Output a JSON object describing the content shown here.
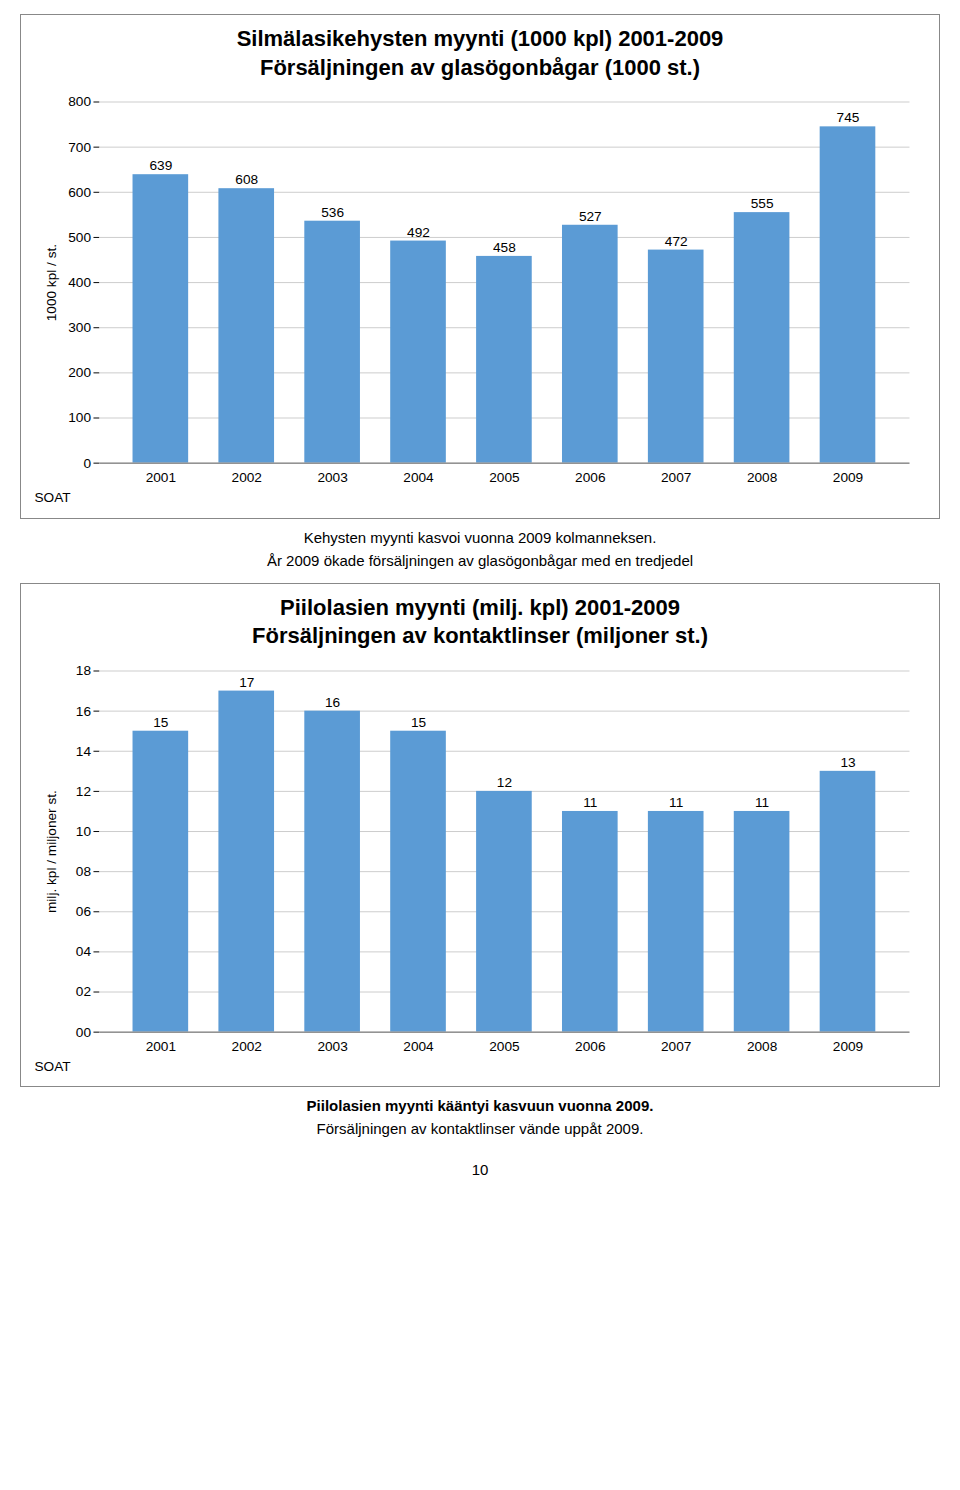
{
  "chart_data": [
    {
      "type": "bar",
      "title": "Silmälasikehysten myynti (1000 kpl) 2001-2009",
      "subtitle": "Försäljningen av glasögonbågar (1000 st.)",
      "categories": [
        "2001",
        "2002",
        "2003",
        "2004",
        "2005",
        "2006",
        "2007",
        "2008",
        "2009"
      ],
      "values": [
        639,
        608,
        536,
        492,
        458,
        527,
        472,
        555,
        745
      ],
      "color": "#5b9bd5",
      "ylabel": "1000 kpl / st.",
      "xlabel": "SOAT",
      "ylim": [
        0,
        800
      ],
      "yticks": [
        0,
        100,
        200,
        300,
        400,
        500,
        600,
        700,
        800
      ],
      "grid": true,
      "data_labels": true,
      "annotations": [
        "Kehysten myynti kasvoi vuonna 2009 kolmanneksen.",
        "År 2009 ökade försäljningen av glasögonbågar med en tredjedel"
      ]
    },
    {
      "type": "bar",
      "title": "Piilolasien myynti (milj. kpl) 2001-2009",
      "subtitle": "Försäljningen av kontaktlinser (miljoner st.)",
      "categories": [
        "2001",
        "2002",
        "2003",
        "2004",
        "2005",
        "2006",
        "2007",
        "2008",
        "2009"
      ],
      "values": [
        15,
        17,
        16,
        15,
        12,
        11,
        11,
        11,
        13
      ],
      "color": "#5b9bd5",
      "ylabel": "milj. kpl / miljoner st.",
      "xlabel": "SOAT",
      "ylim": [
        0,
        18
      ],
      "yticks": [
        {
          "value": 0,
          "label": "00"
        },
        {
          "value": 2,
          "label": "02"
        },
        {
          "value": 4,
          "label": "04"
        },
        {
          "value": 6,
          "label": "06"
        },
        {
          "value": 8,
          "label": "08"
        },
        10,
        12,
        14,
        16,
        18
      ],
      "grid": true,
      "data_labels": true,
      "annotations": [
        "Piilolasien myynti kääntyi kasvuun vuonna 2009.",
        "Försäljningen av kontaktlinser vände uppåt 2009."
      ]
    }
  ],
  "page_number": "10"
}
